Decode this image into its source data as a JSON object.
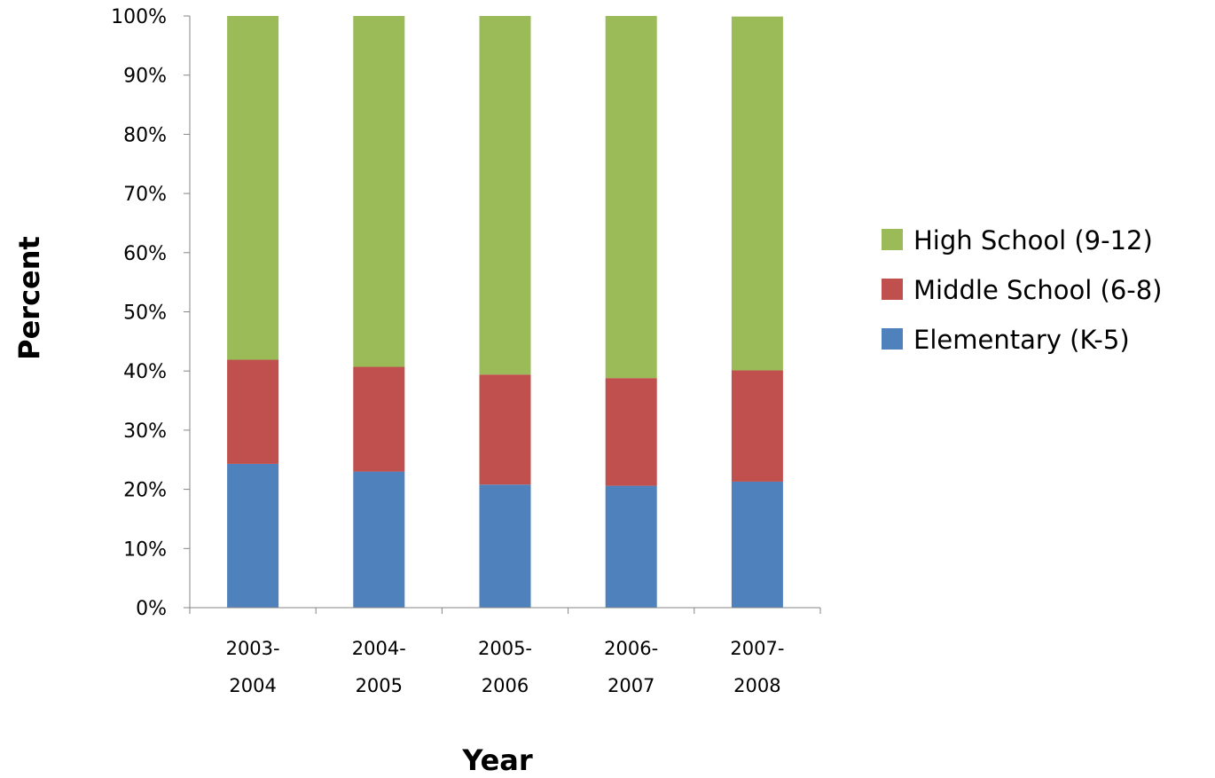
{
  "chart_data": {
    "type": "bar",
    "stacked": true,
    "normalized": true,
    "categories": [
      [
        "2003-",
        "2004"
      ],
      [
        "2004-",
        "2005"
      ],
      [
        "2005-",
        "2006"
      ],
      [
        "2006-",
        "2007"
      ],
      [
        "2007-",
        "2008"
      ]
    ],
    "series": [
      {
        "name": "Elementary (K-5)",
        "color": "#4f81bd",
        "values": [
          24.3,
          23.0,
          20.8,
          20.6,
          21.3
        ]
      },
      {
        "name": "Middle School (6-8)",
        "color": "#c0504d",
        "values": [
          17.6,
          17.7,
          18.6,
          18.2,
          18.8
        ]
      },
      {
        "name": "High School (9-12)",
        "color": "#9bbb59",
        "values": [
          58.1,
          59.3,
          60.6,
          61.2,
          59.8
        ]
      }
    ],
    "title": "",
    "xlabel": "Year",
    "ylabel": "Percent",
    "ylim": [
      0,
      100
    ],
    "yticks": [
      "0%",
      "10%",
      "20%",
      "30%",
      "40%",
      "50%",
      "60%",
      "70%",
      "80%",
      "90%",
      "100%"
    ],
    "grid": false,
    "legend": {
      "position": "right",
      "order": [
        "High School (9-12)",
        "Middle School (6-8)",
        "Elementary (K-5)"
      ]
    }
  }
}
